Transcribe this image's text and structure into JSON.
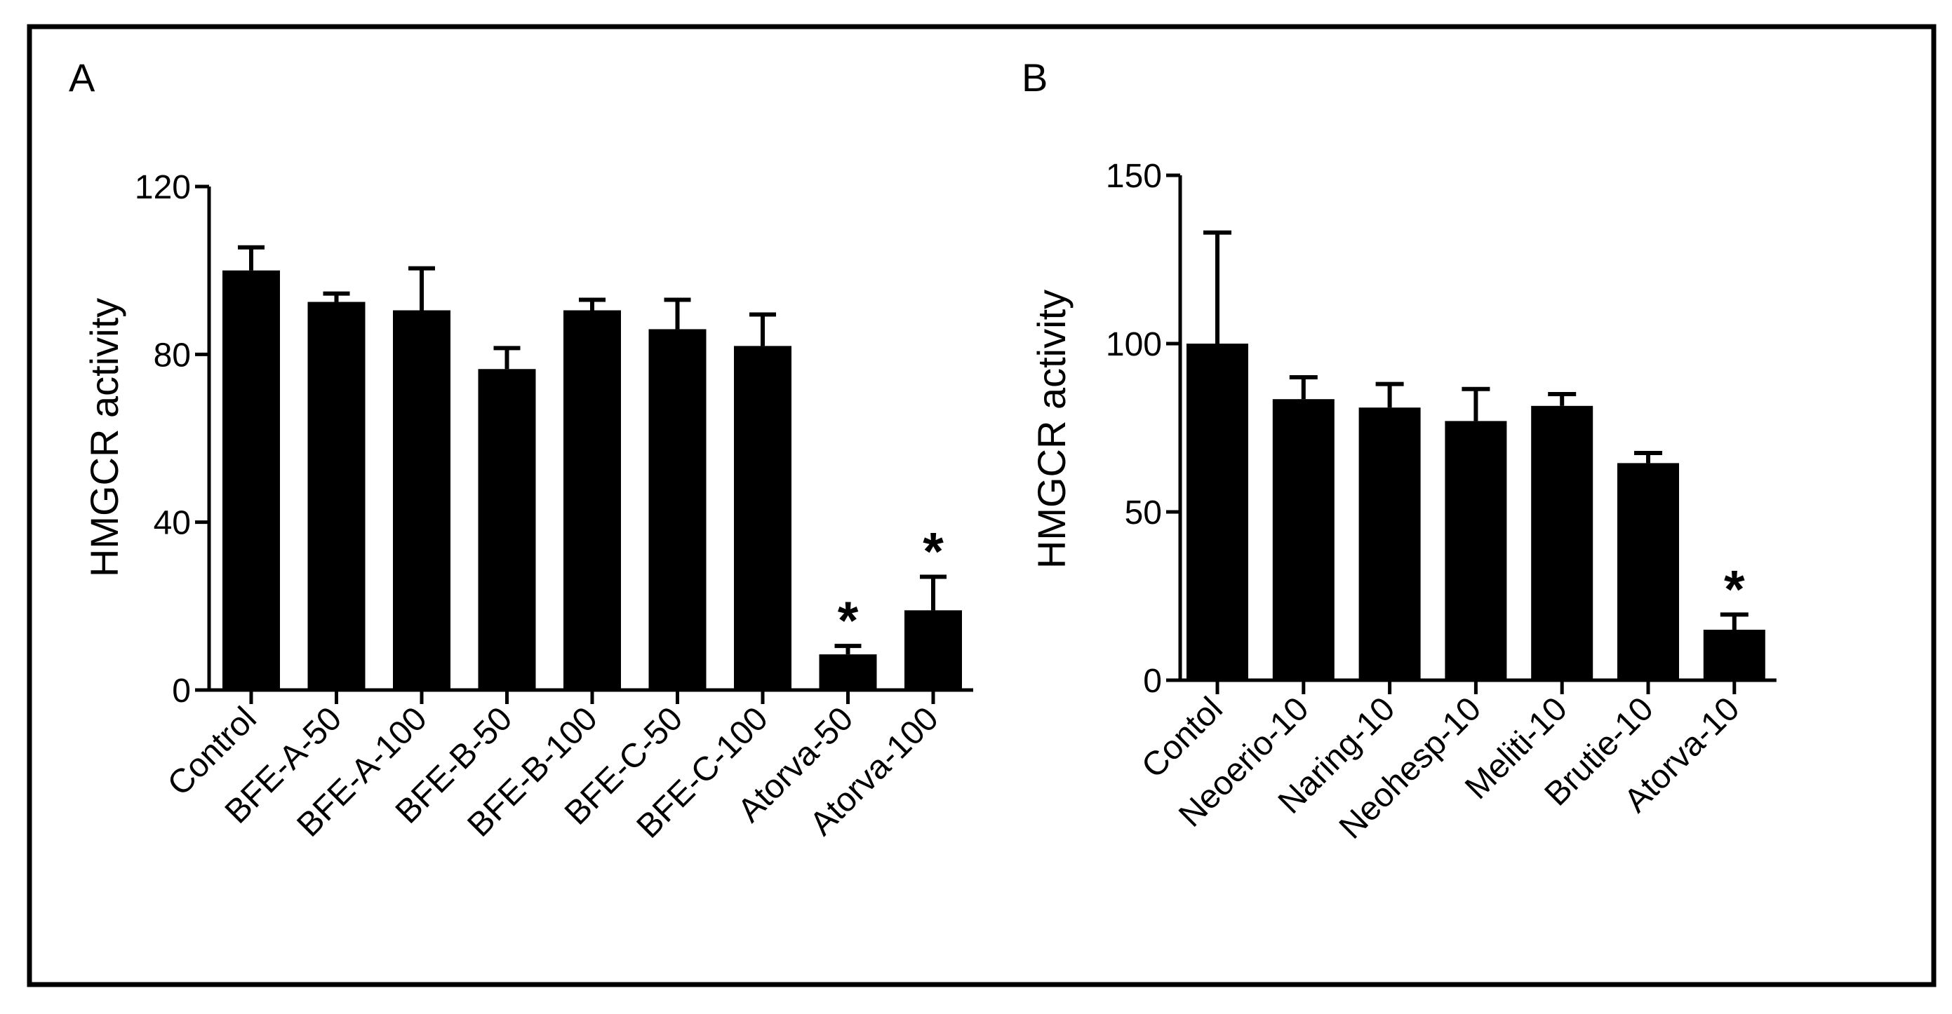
{
  "chart_data": [
    {
      "type": "bar",
      "panel_label": "A",
      "ylabel": "HMGCR activity",
      "ylim": [
        0,
        120
      ],
      "yticks": [
        "0",
        "40",
        "80",
        "120"
      ],
      "ytick_values": [
        0,
        40,
        80,
        120
      ],
      "categories": [
        "Control",
        "BFE-A-50",
        "BFE-A-100",
        "BFE-B-50",
        "BFE-B-100",
        "BFE-C-50",
        "BFE-C-100",
        "Atorva-50",
        "Atorva-100"
      ],
      "values": [
        100,
        92.5,
        90.5,
        76.5,
        90.5,
        86,
        82,
        8.5,
        19
      ],
      "errors": [
        5.5,
        2,
        10,
        5,
        2.5,
        7,
        7.5,
        2,
        8
      ],
      "significance": [
        "",
        "",
        "",
        "",
        "",
        "",
        "",
        "*",
        "*"
      ],
      "bar_color": "#000000"
    },
    {
      "type": "bar",
      "panel_label": "B",
      "ylabel": "HMGCR activity",
      "ylim": [
        0,
        150
      ],
      "yticks": [
        "0",
        "50",
        "100",
        "150"
      ],
      "ytick_values": [
        0,
        50,
        100,
        150
      ],
      "categories": [
        "Contol",
        "Neoerio-10",
        "Naring-10",
        "Neohesp-10",
        "Meliti-10",
        "Brutie-10",
        "Atorva-10"
      ],
      "values": [
        100,
        83.5,
        81,
        77,
        81.5,
        64.5,
        15
      ],
      "errors": [
        33,
        6.5,
        7,
        9.5,
        3.5,
        3,
        4.5
      ],
      "significance": [
        "",
        "",
        "",
        "",
        "",
        "",
        "*"
      ],
      "bar_color": "#000000"
    }
  ]
}
